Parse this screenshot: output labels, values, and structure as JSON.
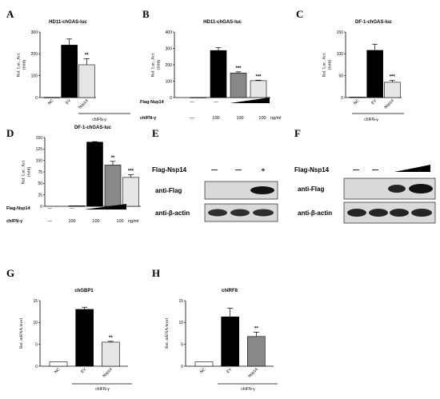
{
  "panels": [
    {
      "id": "A",
      "letter": "A",
      "title": "HD11-chGAS-luc",
      "ylabel": [
        "Rel. Luc. Act.",
        "(fold)"
      ],
      "bottom_label": "chIFN-γ"
    },
    {
      "id": "B",
      "letter": "B",
      "title": "HD11-chGAS-luc",
      "ylabel": [
        "Rel. Luc. Act.",
        "(fold)"
      ],
      "row1_label": "Flag-Nsp14",
      "row1_vals": [
        "—",
        "—"
      ],
      "row2_label": "chIFN-γ",
      "row2_vals": [
        "—",
        "100",
        "100",
        "100"
      ],
      "unit": "ng/ml"
    },
    {
      "id": "C",
      "letter": "C",
      "title": "DF-1-chGAS-luc",
      "ylabel": [
        "Rel. Luc. Act.",
        "(fold)"
      ],
      "bottom_label": "chIFN-γ"
    },
    {
      "id": "D",
      "letter": "D",
      "title": "DF-1-chGAS-luc",
      "ylabel": [
        "Rel. Luc. Act.",
        "(fold)"
      ],
      "row1_label": "Flag-Nsp14",
      "row1_vals": [
        "—",
        "—"
      ],
      "row2_label": "chIFN-γ",
      "row2_vals": [
        "—",
        "100",
        "100",
        "100"
      ],
      "unit": "ng/ml"
    },
    {
      "id": "G",
      "letter": "G",
      "title": "chGBP1",
      "ylabel": [
        "Rel. mRNA level"
      ],
      "bottom_label": "chIFN-γ"
    },
    {
      "id": "H",
      "letter": "H",
      "title": "chIRF8",
      "ylabel": [
        "Rel. mRNA level"
      ],
      "bottom_label": "chIFN-γ"
    }
  ],
  "blots": [
    {
      "letter": "E",
      "top_label": "Flag-Nsp14",
      "top_marks": [
        "—",
        "—",
        "+"
      ],
      "rows": [
        "anti-Flag",
        "anti-β-actin"
      ]
    },
    {
      "letter": "F",
      "top_label": "Flag-Nsp14",
      "top_marks": [
        "—",
        "—"
      ],
      "rows": [
        "anti-Flag",
        "anti-β-actin"
      ]
    }
  ],
  "chart_data": [
    {
      "type": "bar",
      "title": "HD11-chGAS-luc",
      "ylabel": "Rel. Luc. Act. (fold)",
      "categories": [
        "NC",
        "EV",
        "Nsp14"
      ],
      "values": [
        1,
        240,
        150
      ],
      "errors": [
        0,
        28,
        28
      ],
      "ylim": [
        0,
        300
      ],
      "yticks": [
        "0",
        "100",
        "200",
        "300"
      ],
      "significance": [
        "",
        "",
        "**"
      ],
      "colors": [
        "#000000",
        "#000000",
        "#e6e6e6"
      ]
    },
    {
      "type": "bar",
      "title": "HD11-chGAS-luc",
      "ylabel": "Rel. Luc. Act. (fold)",
      "categories": [
        "",
        "",
        "",
        ""
      ],
      "values": [
        1,
        287,
        150,
        103
      ],
      "errors": [
        0,
        17,
        7,
        3
      ],
      "ylim": [
        0,
        400
      ],
      "yticks": [
        "0",
        "100",
        "200",
        "300",
        "400"
      ],
      "significance": [
        "",
        "",
        "***",
        "***"
      ],
      "colors": [
        "#000000",
        "#000000",
        "#888888",
        "#e6e6e6"
      ]
    },
    {
      "type": "bar",
      "title": "DF-1-chGAS-luc",
      "ylabel": "Rel. Luc. Act. (fold)",
      "categories": [
        "NC",
        "EV",
        "Nsp14"
      ],
      "values": [
        1,
        108,
        35
      ],
      "errors": [
        0,
        14,
        4
      ],
      "ylim": [
        0,
        150
      ],
      "yticks": [
        "0",
        "50",
        "100",
        "150"
      ],
      "significance": [
        "",
        "",
        "***"
      ],
      "colors": [
        "#000000",
        "#000000",
        "#e6e6e6"
      ]
    },
    {
      "type": "bar",
      "title": "DF-1-chGAS-luc",
      "ylabel": "Rel. Luc. Act. (fold)",
      "categories": [
        "",
        "",
        "",
        ""
      ],
      "values": [
        1,
        140,
        90,
        63
      ],
      "errors": [
        0,
        1,
        8,
        6
      ],
      "ylim": [
        0,
        150
      ],
      "yticks": [
        "0",
        "25",
        "50",
        "75",
        "100",
        "125",
        "150"
      ],
      "significance": [
        "",
        "",
        "**",
        "***"
      ],
      "colors": [
        "#000000",
        "#000000",
        "#888888",
        "#e6e6e6"
      ]
    },
    {
      "type": "bar",
      "title": "chGBP1",
      "ylabel": "Rel. mRNA level",
      "categories": [
        "NC",
        "EV",
        "Nsp14"
      ],
      "values": [
        1,
        13,
        5.5
      ],
      "errors": [
        0,
        0.5,
        0.2
      ],
      "ylim": [
        0,
        15
      ],
      "yticks": [
        "0",
        "5",
        "10",
        "15"
      ],
      "significance": [
        "",
        "",
        "**"
      ],
      "colors": [
        "#ffffff",
        "#000000",
        "#e6e6e6"
      ]
    },
    {
      "type": "bar",
      "title": "chIRF8",
      "ylabel": "Rel. mRNA level",
      "categories": [
        "NC",
        "EV",
        "Nsp14"
      ],
      "values": [
        1,
        11.3,
        6.8
      ],
      "errors": [
        0,
        2,
        1
      ],
      "ylim": [
        0,
        15
      ],
      "yticks": [
        "0",
        "5",
        "10",
        "15"
      ],
      "significance": [
        "",
        "",
        "**"
      ],
      "colors": [
        "#ffffff",
        "#000000",
        "#888888"
      ]
    }
  ]
}
